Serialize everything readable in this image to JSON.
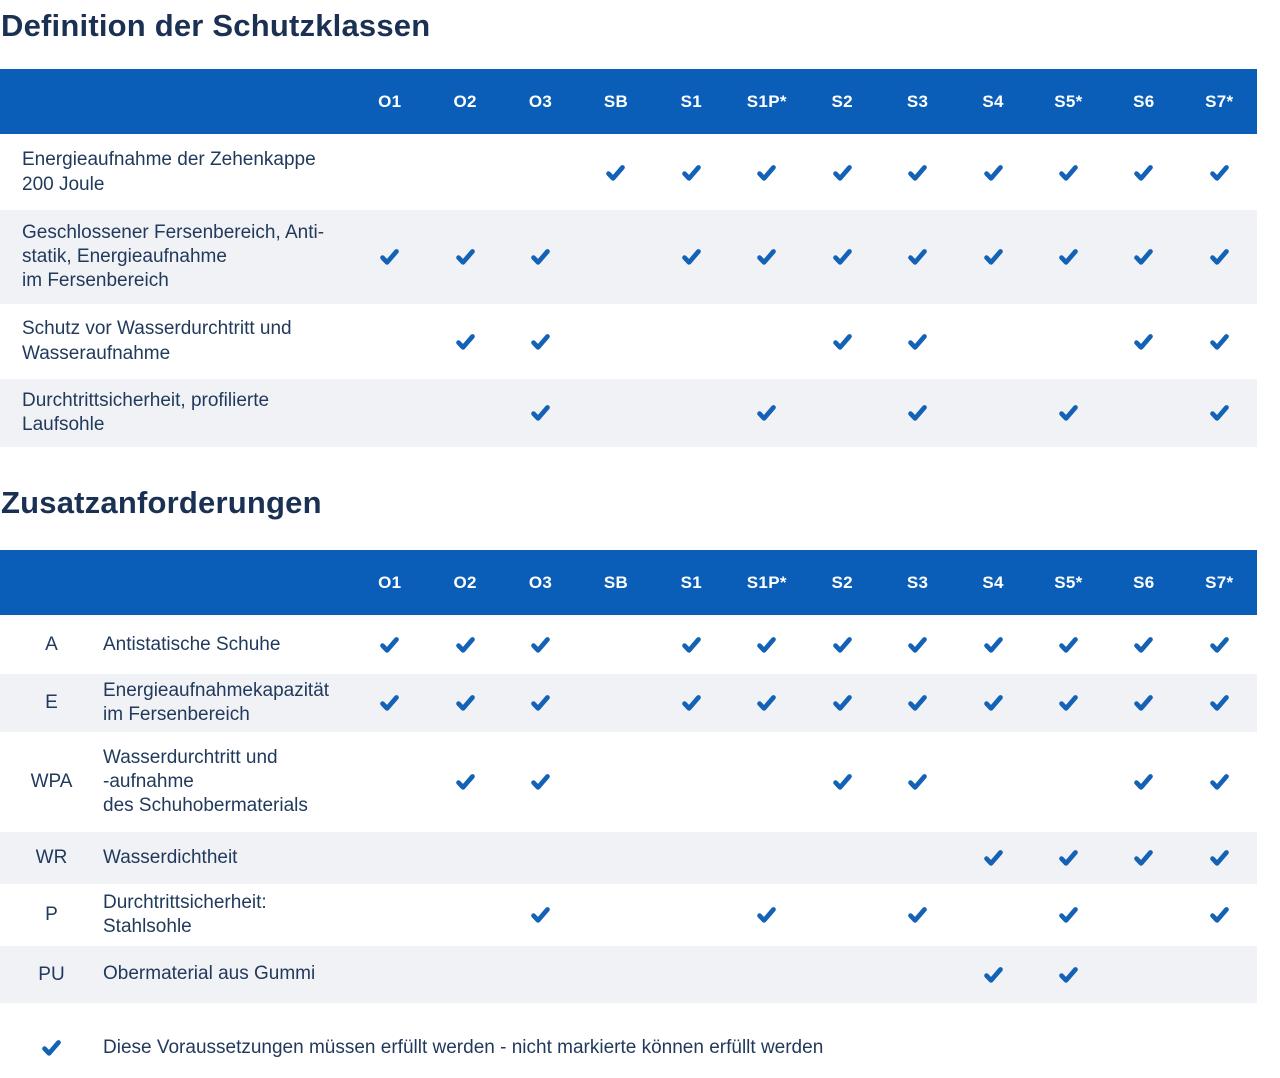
{
  "colors": {
    "header_bg": "#0a5eb8",
    "check": "#1462b5",
    "title_text": "#1a3153",
    "body_text": "#213a5c",
    "row_alt_bg": "#f1f2f6"
  },
  "columns": [
    "O1",
    "O2",
    "O3",
    "SB",
    "S1",
    "S1P*",
    "S2",
    "S3",
    "S4",
    "S5*",
    "S6",
    "S7*"
  ],
  "section1": {
    "title": "Definition der Schutzklassen",
    "rows": [
      {
        "label_lines": [
          "Energieaufnahme der Zehenkappe",
          "200 Joule"
        ],
        "checks": [
          0,
          0,
          0,
          1,
          1,
          1,
          1,
          1,
          1,
          1,
          1,
          1
        ]
      },
      {
        "label_lines": [
          "Geschlossener Fersenbereich, Anti-",
          "statik, Energieaufnahme",
          "im Fersenbereich"
        ],
        "checks": [
          1,
          1,
          1,
          0,
          1,
          1,
          1,
          1,
          1,
          1,
          1,
          1
        ]
      },
      {
        "label_lines": [
          "Schutz vor Wasserdurchtritt und",
          "Wasseraufnahme"
        ],
        "checks": [
          0,
          1,
          1,
          0,
          0,
          0,
          1,
          1,
          0,
          0,
          1,
          1
        ]
      },
      {
        "label_lines": [
          "Durchtrittsicherheit, profilierte",
          "Laufsohle"
        ],
        "checks": [
          0,
          0,
          1,
          0,
          0,
          1,
          0,
          1,
          0,
          1,
          0,
          1
        ]
      }
    ]
  },
  "section2": {
    "title": "Zusatzanforderungen",
    "rows": [
      {
        "code": "A",
        "label_lines": [
          "Antistatische Schuhe"
        ],
        "checks": [
          1,
          1,
          1,
          0,
          1,
          1,
          1,
          1,
          1,
          1,
          1,
          1
        ]
      },
      {
        "code": "E",
        "label_lines": [
          "Energieaufnahmekapazität",
          "im Fersenbereich"
        ],
        "checks": [
          1,
          1,
          1,
          0,
          1,
          1,
          1,
          1,
          1,
          1,
          1,
          1
        ]
      },
      {
        "code": "WPA",
        "label_lines": [
          "Wasserdurchtritt und",
          "-aufnahme",
          "des Schuhobermaterials"
        ],
        "checks": [
          0,
          1,
          1,
          0,
          0,
          0,
          1,
          1,
          0,
          0,
          1,
          1
        ]
      },
      {
        "code": "WR",
        "label_lines": [
          "Wasserdichtheit"
        ],
        "checks": [
          0,
          0,
          0,
          0,
          0,
          0,
          0,
          0,
          1,
          1,
          1,
          1
        ]
      },
      {
        "code": "P",
        "label_lines": [
          "Durchtrittsicherheit:",
          "Stahlsohle"
        ],
        "checks": [
          0,
          0,
          1,
          0,
          0,
          1,
          0,
          1,
          0,
          1,
          0,
          1
        ]
      },
      {
        "code": "PU",
        "label_lines": [
          "Obermaterial aus Gummi"
        ],
        "checks": [
          0,
          0,
          0,
          0,
          0,
          0,
          0,
          0,
          1,
          1,
          0,
          0
        ]
      }
    ]
  },
  "legend": {
    "icon": "check-icon",
    "text": "Diese Voraussetzungen müssen erfüllt werden - nicht markierte können erfüllt werden"
  }
}
